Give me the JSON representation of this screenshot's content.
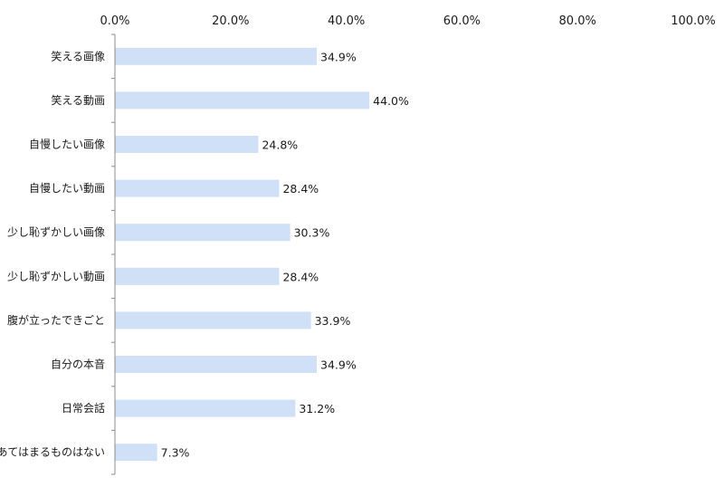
{
  "chart_data": {
    "type": "bar",
    "orientation": "horizontal",
    "title": "",
    "xlabel": "",
    "ylabel": "",
    "xlim": [
      0,
      100
    ],
    "x_ticks": [
      0,
      20,
      40,
      60,
      80,
      100
    ],
    "x_tick_labels": [
      "0.0%",
      "20.0%",
      "40.0%",
      "60.0%",
      "80.0%",
      "100.0%"
    ],
    "x_axis_position": "top",
    "grid": false,
    "legend": "none",
    "bar_color": "#cfe0f7",
    "categories": [
      "笑える画像",
      "笑える動画",
      "自慢したい画像",
      "自慢したい動画",
      "少し恥ずかしい画像",
      "少し恥ずかしい動画",
      "腹が立ったできごと",
      "自分の本音",
      "日常会話",
      "あてはまるものはない"
    ],
    "values": [
      34.9,
      44.0,
      24.8,
      28.4,
      30.3,
      28.4,
      33.9,
      34.9,
      31.2,
      7.3
    ],
    "value_labels": [
      "34.9%",
      "44.0%",
      "24.8%",
      "28.4%",
      "30.3%",
      "28.4%",
      "33.9%",
      "34.9%",
      "31.2%",
      "7.3%"
    ]
  }
}
